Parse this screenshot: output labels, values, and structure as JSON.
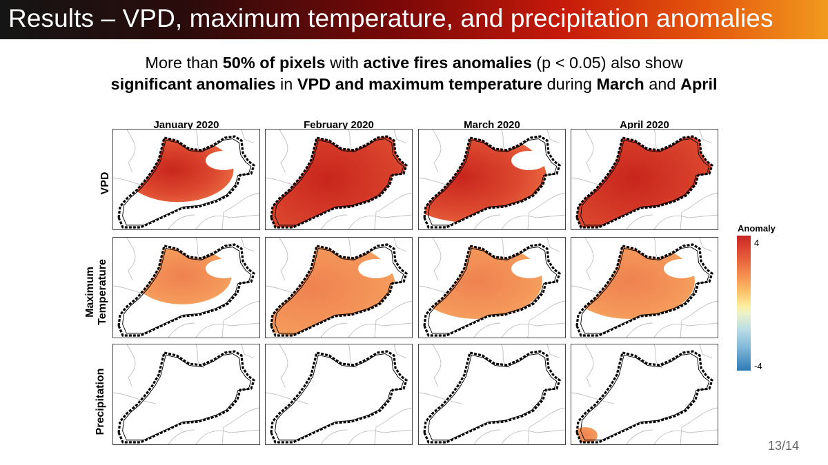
{
  "slide": {
    "title": "Results – VPD, maximum temperature, and precipitation anomalies",
    "subtitle": {
      "line1": [
        {
          "text": "More than ",
          "bold": false
        },
        {
          "text": "50% of pixels",
          "bold": true
        },
        {
          "text": " with ",
          "bold": false
        },
        {
          "text": "active fires anomalies",
          "bold": true
        },
        {
          "text": " (p < 0.05) also show",
          "bold": false
        }
      ],
      "line2": [
        {
          "text": "significant anomalies",
          "bold": true
        },
        {
          "text": " in ",
          "bold": false
        },
        {
          "text": "VPD and maximum temperature",
          "bold": true
        },
        {
          "text": " during ",
          "bold": false
        },
        {
          "text": "March",
          "bold": true
        },
        {
          "text": " and ",
          "bold": false
        },
        {
          "text": "April",
          "bold": true
        }
      ]
    },
    "page_number": "13/14"
  },
  "figure": {
    "columns": [
      "January 2020",
      "February 2020",
      "March 2020",
      "April 2020"
    ],
    "rows": [
      "VPD",
      "Maximum\nTemperature",
      "Precipitation"
    ],
    "legend": {
      "title": "Anomaly",
      "max_label": "4",
      "min_label": "-4",
      "colors": [
        "#c62621",
        "#f38a4c",
        "#fdeea0",
        "#7db4d6",
        "#2c7bb6"
      ]
    },
    "coverage": [
      [
        0.45,
        1.0,
        0.8,
        1.0
      ],
      [
        0.35,
        0.92,
        0.6,
        0.6
      ],
      [
        0.0,
        0.0,
        0.0,
        0.05
      ]
    ]
  }
}
